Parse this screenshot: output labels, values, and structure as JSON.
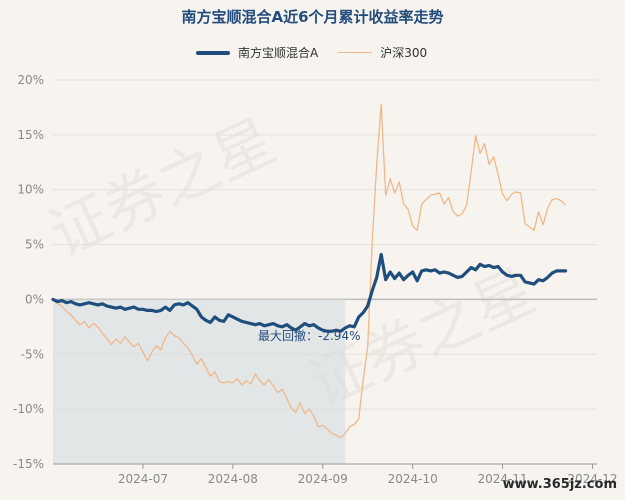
{
  "chart_data": {
    "type": "line",
    "title": "南方宝顺混合A近6个月累计收益率走势",
    "y_ticks": [
      "20%",
      "15%",
      "10%",
      "5%",
      "0%",
      "-5%",
      "-10%",
      "-15%"
    ],
    "y_tick_values": [
      20,
      15,
      10,
      5,
      0,
      -5,
      -10,
      -15
    ],
    "x_ticks": [
      "2024-07",
      "2024-08",
      "2024-09",
      "2024-10",
      "2024-11",
      "2024-12"
    ],
    "x_tick_values": [
      20,
      40,
      60,
      80,
      100,
      120
    ],
    "ylim": [
      -15,
      20
    ],
    "xlim": [
      0,
      121
    ],
    "grid": true,
    "legend": "top-center",
    "annotation": "最大回撤：-2.94%",
    "drawdown_region": {
      "x_start": 0,
      "x_end": 65,
      "y_top": 0,
      "y_bottom": -15
    },
    "series": [
      {
        "name": "南方宝顺混合A",
        "color": "#1f4e7d",
        "points": [
          [
            0,
            0
          ],
          [
            1,
            -0.2
          ],
          [
            2,
            -0.1
          ],
          [
            3,
            -0.3
          ],
          [
            4,
            -0.2
          ],
          [
            5,
            -0.4
          ],
          [
            6,
            -0.5
          ],
          [
            7,
            -0.4
          ],
          [
            8,
            -0.3
          ],
          [
            9,
            -0.4
          ],
          [
            10,
            -0.5
          ],
          [
            11,
            -0.4
          ],
          [
            12,
            -0.6
          ],
          [
            13,
            -0.7
          ],
          [
            14,
            -0.8
          ],
          [
            15,
            -0.7
          ],
          [
            16,
            -0.9
          ],
          [
            17,
            -0.8
          ],
          [
            18,
            -0.7
          ],
          [
            19,
            -0.9
          ],
          [
            20,
            -0.9
          ],
          [
            21,
            -1.0
          ],
          [
            22,
            -1.0
          ],
          [
            23,
            -1.1
          ],
          [
            24,
            -1.0
          ],
          [
            25,
            -0.7
          ],
          [
            26,
            -1.0
          ],
          [
            27,
            -0.5
          ],
          [
            28,
            -0.4
          ],
          [
            29,
            -0.5
          ],
          [
            30,
            -0.3
          ],
          [
            31,
            -0.6
          ],
          [
            32,
            -0.9
          ],
          [
            33,
            -1.6
          ],
          [
            34,
            -1.9
          ],
          [
            35,
            -2.1
          ],
          [
            36,
            -1.6
          ],
          [
            37,
            -1.9
          ],
          [
            38,
            -2.0
          ],
          [
            39,
            -1.4
          ],
          [
            40,
            -1.6
          ],
          [
            41,
            -1.8
          ],
          [
            42,
            -2.0
          ],
          [
            43,
            -2.1
          ],
          [
            44,
            -2.2
          ],
          [
            45,
            -2.3
          ],
          [
            46,
            -2.2
          ],
          [
            47,
            -2.4
          ],
          [
            48,
            -2.3
          ],
          [
            49,
            -2.2
          ],
          [
            50,
            -2.4
          ],
          [
            51,
            -2.5
          ],
          [
            52,
            -2.3
          ],
          [
            53,
            -2.6
          ],
          [
            54,
            -2.8
          ],
          [
            55,
            -2.5
          ],
          [
            56,
            -2.2
          ],
          [
            57,
            -2.4
          ],
          [
            58,
            -2.3
          ],
          [
            59,
            -2.6
          ],
          [
            60,
            -2.8
          ],
          [
            61,
            -2.9
          ],
          [
            62,
            -2.9
          ],
          [
            63,
            -2.8
          ],
          [
            64,
            -2.9
          ],
          [
            65,
            -2.6
          ],
          [
            66,
            -2.4
          ],
          [
            67,
            -2.5
          ],
          [
            68,
            -1.6
          ],
          [
            69,
            -1.2
          ],
          [
            70,
            -0.6
          ],
          [
            71,
            0.8
          ],
          [
            72,
            2.0
          ],
          [
            73,
            4.1
          ],
          [
            74,
            1.8
          ],
          [
            75,
            2.5
          ],
          [
            76,
            1.9
          ],
          [
            77,
            2.4
          ],
          [
            78,
            1.8
          ],
          [
            79,
            2.2
          ],
          [
            80,
            2.5
          ],
          [
            81,
            1.7
          ],
          [
            82,
            2.6
          ],
          [
            83,
            2.7
          ],
          [
            84,
            2.6
          ],
          [
            85,
            2.7
          ],
          [
            86,
            2.4
          ],
          [
            87,
            2.5
          ],
          [
            88,
            2.4
          ],
          [
            89,
            2.2
          ],
          [
            90,
            2.0
          ],
          [
            91,
            2.1
          ],
          [
            92,
            2.5
          ],
          [
            93,
            2.9
          ],
          [
            94,
            2.7
          ],
          [
            95,
            3.2
          ],
          [
            96,
            3.0
          ],
          [
            97,
            3.1
          ],
          [
            98,
            2.9
          ],
          [
            99,
            3.0
          ],
          [
            100,
            2.5
          ],
          [
            101,
            2.2
          ],
          [
            102,
            2.1
          ],
          [
            103,
            2.2
          ],
          [
            104,
            2.2
          ],
          [
            105,
            1.6
          ],
          [
            106,
            1.5
          ],
          [
            107,
            1.4
          ],
          [
            108,
            1.8
          ],
          [
            109,
            1.7
          ],
          [
            110,
            2.0
          ],
          [
            111,
            2.4
          ],
          [
            112,
            2.6
          ],
          [
            113,
            2.6
          ],
          [
            114,
            2.6
          ]
        ]
      },
      {
        "name": "沪深300",
        "color": "#f0b78a",
        "points": [
          [
            0,
            0
          ],
          [
            1,
            -0.4
          ],
          [
            2,
            -0.6
          ],
          [
            3,
            -1.1
          ],
          [
            4,
            -1.4
          ],
          [
            5,
            -1.9
          ],
          [
            6,
            -2.3
          ],
          [
            7,
            -2.0
          ],
          [
            8,
            -2.6
          ],
          [
            9,
            -2.2
          ],
          [
            10,
            -2.5
          ],
          [
            11,
            -3.1
          ],
          [
            12,
            -3.6
          ],
          [
            13,
            -4.1
          ],
          [
            14,
            -3.6
          ],
          [
            15,
            -4.0
          ],
          [
            16,
            -3.4
          ],
          [
            17,
            -3.9
          ],
          [
            18,
            -4.3
          ],
          [
            19,
            -4.0
          ],
          [
            20,
            -4.8
          ],
          [
            21,
            -5.6
          ],
          [
            22,
            -4.8
          ],
          [
            23,
            -4.2
          ],
          [
            24,
            -4.6
          ],
          [
            25,
            -3.5
          ],
          [
            26,
            -2.9
          ],
          [
            27,
            -3.3
          ],
          [
            28,
            -3.5
          ],
          [
            29,
            -4.0
          ],
          [
            30,
            -4.4
          ],
          [
            31,
            -5.1
          ],
          [
            32,
            -5.9
          ],
          [
            33,
            -5.4
          ],
          [
            34,
            -6.2
          ],
          [
            35,
            -7.0
          ],
          [
            36,
            -6.6
          ],
          [
            37,
            -7.5
          ],
          [
            38,
            -7.6
          ],
          [
            39,
            -7.5
          ],
          [
            40,
            -7.6
          ],
          [
            41,
            -7.2
          ],
          [
            42,
            -7.8
          ],
          [
            43,
            -7.4
          ],
          [
            44,
            -7.7
          ],
          [
            45,
            -6.8
          ],
          [
            46,
            -7.4
          ],
          [
            47,
            -7.8
          ],
          [
            48,
            -7.3
          ],
          [
            49,
            -7.9
          ],
          [
            50,
            -8.5
          ],
          [
            51,
            -8.2
          ],
          [
            52,
            -9.0
          ],
          [
            53,
            -9.9
          ],
          [
            54,
            -10.3
          ],
          [
            55,
            -9.4
          ],
          [
            56,
            -10.4
          ],
          [
            57,
            -10.0
          ],
          [
            58,
            -10.6
          ],
          [
            59,
            -11.6
          ],
          [
            60,
            -11.5
          ],
          [
            61,
            -11.8
          ],
          [
            62,
            -12.2
          ],
          [
            63,
            -12.4
          ],
          [
            64,
            -12.6
          ],
          [
            65,
            -12.2
          ],
          [
            66,
            -11.6
          ],
          [
            67,
            -11.4
          ],
          [
            68,
            -10.9
          ],
          [
            69,
            -7.3
          ],
          [
            70,
            -4.3
          ],
          [
            71,
            5.2
          ],
          [
            72,
            12.3
          ],
          [
            73,
            17.8
          ],
          [
            74,
            9.5
          ],
          [
            75,
            11.0
          ],
          [
            76,
            9.7
          ],
          [
            77,
            10.7
          ],
          [
            78,
            8.7
          ],
          [
            79,
            8.2
          ],
          [
            80,
            6.7
          ],
          [
            81,
            6.3
          ],
          [
            82,
            8.7
          ],
          [
            83,
            9.1
          ],
          [
            84,
            9.5
          ],
          [
            85,
            9.6
          ],
          [
            86,
            9.7
          ],
          [
            87,
            8.7
          ],
          [
            88,
            9.3
          ],
          [
            89,
            8.0
          ],
          [
            90,
            7.6
          ],
          [
            91,
            7.8
          ],
          [
            92,
            8.6
          ],
          [
            93,
            11.6
          ],
          [
            94,
            14.9
          ],
          [
            95,
            13.3
          ],
          [
            96,
            14.2
          ],
          [
            97,
            12.3
          ],
          [
            98,
            13.0
          ],
          [
            99,
            11.4
          ],
          [
            100,
            9.6
          ],
          [
            101,
            9.0
          ],
          [
            102,
            9.6
          ],
          [
            103,
            9.8
          ],
          [
            104,
            9.7
          ],
          [
            105,
            6.9
          ],
          [
            106,
            6.6
          ],
          [
            107,
            6.3
          ],
          [
            108,
            8.0
          ],
          [
            109,
            6.8
          ],
          [
            110,
            8.3
          ],
          [
            111,
            9.1
          ],
          [
            112,
            9.2
          ],
          [
            113,
            9.0
          ],
          [
            114,
            8.6
          ]
        ]
      }
    ]
  },
  "legend": {
    "fund_label": "南方宝顺混合A",
    "index_label": "沪深300"
  },
  "watermark_text": "证券之星",
  "site_label": "www.365jz.com"
}
